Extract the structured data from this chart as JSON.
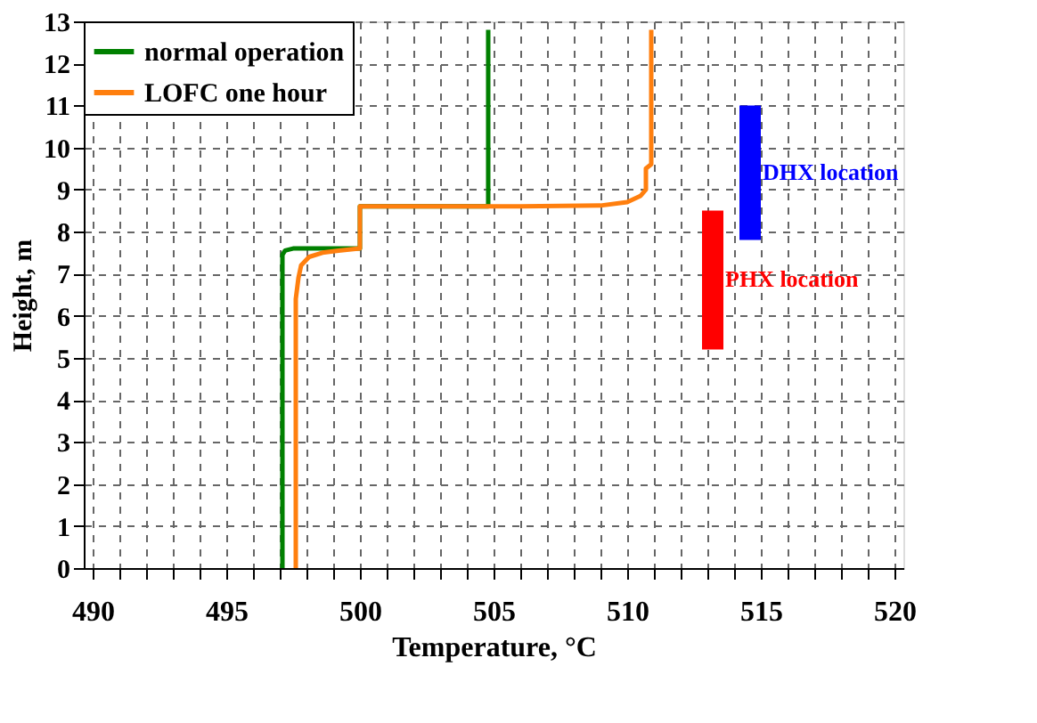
{
  "chart_data": {
    "type": "line",
    "xlabel": "Temperature, °C",
    "ylabel": "Height, m",
    "xlim": [
      490,
      520
    ],
    "ylim": [
      0,
      13
    ],
    "xticks": [
      490,
      {
        "value": 491,
        "label": null
      },
      {
        "value": 492,
        "label": null
      },
      {
        "value": 493,
        "label": null
      },
      {
        "value": 494,
        "label": null
      },
      495,
      {
        "value": 496,
        "label": null
      },
      {
        "value": 497,
        "label": null
      },
      {
        "value": 498,
        "label": null
      },
      {
        "value": 499,
        "label": null
      },
      500,
      {
        "value": 501,
        "label": null
      },
      {
        "value": 502,
        "label": null
      },
      {
        "value": 503,
        "label": null
      },
      {
        "value": 504,
        "label": null
      },
      505,
      {
        "value": 506,
        "label": null
      },
      {
        "value": 507,
        "label": null
      },
      {
        "value": 508,
        "label": null
      },
      {
        "value": 509,
        "label": null
      },
      510,
      {
        "value": 511,
        "label": null
      },
      {
        "value": 512,
        "label": null
      },
      {
        "value": 513,
        "label": null
      },
      {
        "value": 514,
        "label": null
      },
      515,
      {
        "value": 516,
        "label": null
      },
      {
        "value": 517,
        "label": null
      },
      {
        "value": 518,
        "label": null
      },
      {
        "value": 519,
        "label": null
      },
      520
    ],
    "yticks": [
      0,
      1,
      2,
      3,
      4,
      5,
      6,
      7,
      8,
      9,
      10,
      11,
      12,
      13
    ],
    "grid": true,
    "legend": "top left",
    "line_style": "solid",
    "marker": "none",
    "series": [
      {
        "name": "normal operation",
        "color": "#008000",
        "x": [
          497.1,
          497.1,
          497.2,
          497.5,
          500.0,
          500.0,
          504.8,
          504.8
        ],
        "values": [
          0,
          7.45,
          7.55,
          7.6,
          7.6,
          8.6,
          8.6,
          12.8
        ]
      },
      {
        "name": "LOFC one hour",
        "color": "#ff7f0e",
        "x": [
          497.6,
          497.6,
          497.7,
          497.8,
          498.1,
          498.6,
          499.2,
          500.0,
          500.0,
          506.0,
          509.0,
          510.0,
          510.5,
          510.7,
          510.7,
          510.9,
          510.9
        ],
        "values": [
          0,
          6.4,
          6.9,
          7.2,
          7.4,
          7.5,
          7.55,
          7.6,
          8.6,
          8.6,
          8.62,
          8.7,
          8.85,
          9.0,
          9.5,
          9.6,
          12.8
        ]
      },
      {
        "type": "bar",
        "name": "PHX location",
        "color": "#ff0000",
        "x": [
          513.2
        ],
        "base": [
          5.2
        ],
        "values": [
          3.3
        ]
      },
      {
        "type": "bar",
        "name": "DHX location",
        "color": "#0000ff",
        "x": [
          514.6
        ],
        "base": [
          7.8
        ],
        "values": [
          3.2
        ]
      }
    ]
  }
}
